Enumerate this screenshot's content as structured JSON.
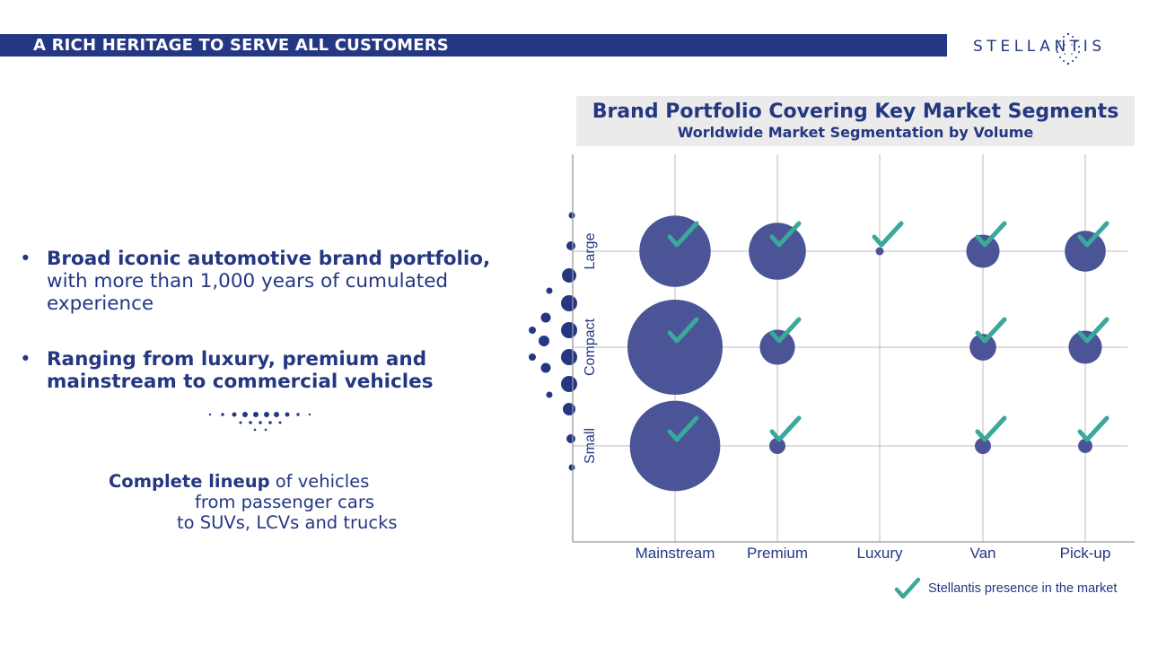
{
  "header": {
    "title": "A RICH HERITAGE TO SERVE ALL CUSTOMERS"
  },
  "logo": {
    "text": "STELLANTIS"
  },
  "bullets": [
    {
      "bold": "Broad iconic automotive brand portfolio,",
      "rest": " with more than 1,000 years of cumulated experience"
    },
    {
      "bold": "Ranging from luxury, premium and mainstream to commercial vehicles",
      "rest": ""
    }
  ],
  "lineup": {
    "bold": "Complete lineup",
    "line1_rest": " of vehicles",
    "line2": "from passenger cars",
    "line3": "to SUVs, LCVs and trucks"
  },
  "colors": {
    "brand": "#243782",
    "bubble": "#4a5497",
    "check": "#3aa89a",
    "header_bg": "#ebebeb",
    "grid": "#bdbdbd"
  },
  "legend": {
    "label": "Stellantis presence in the market",
    "icon": "check-icon"
  },
  "chart_data": {
    "type": "scatter",
    "title": "Brand Portfolio Covering Key Market Segments",
    "subtitle": "Worldwide Market Segmentation by Volume",
    "x_categories": [
      "Mainstream",
      "Premium",
      "Luxury",
      "Van",
      "Pick-up"
    ],
    "y_categories": [
      "Large",
      "Compact",
      "Small"
    ],
    "grid": true,
    "legend_position": "bottom-right",
    "points": [
      {
        "x": "Mainstream",
        "y": "Large",
        "size": 0.75,
        "presence": true
      },
      {
        "x": "Premium",
        "y": "Large",
        "size": 0.6,
        "presence": true
      },
      {
        "x": "Luxury",
        "y": "Large",
        "size": 0.08,
        "presence": true
      },
      {
        "x": "Van",
        "y": "Large",
        "size": 0.35,
        "presence": true
      },
      {
        "x": "Pick-up",
        "y": "Large",
        "size": 0.43,
        "presence": true
      },
      {
        "x": "Mainstream",
        "y": "Compact",
        "size": 1.0,
        "presence": true
      },
      {
        "x": "Premium",
        "y": "Compact",
        "size": 0.37,
        "presence": true
      },
      {
        "x": "Van",
        "y": "Compact",
        "size": 0.28,
        "presence": true
      },
      {
        "x": "Pick-up",
        "y": "Compact",
        "size": 0.35,
        "presence": true
      },
      {
        "x": "Mainstream",
        "y": "Small",
        "size": 0.95,
        "presence": true
      },
      {
        "x": "Premium",
        "y": "Small",
        "size": 0.17,
        "presence": true
      },
      {
        "x": "Van",
        "y": "Small",
        "size": 0.17,
        "presence": true
      },
      {
        "x": "Pick-up",
        "y": "Small",
        "size": 0.15,
        "presence": true
      }
    ]
  }
}
